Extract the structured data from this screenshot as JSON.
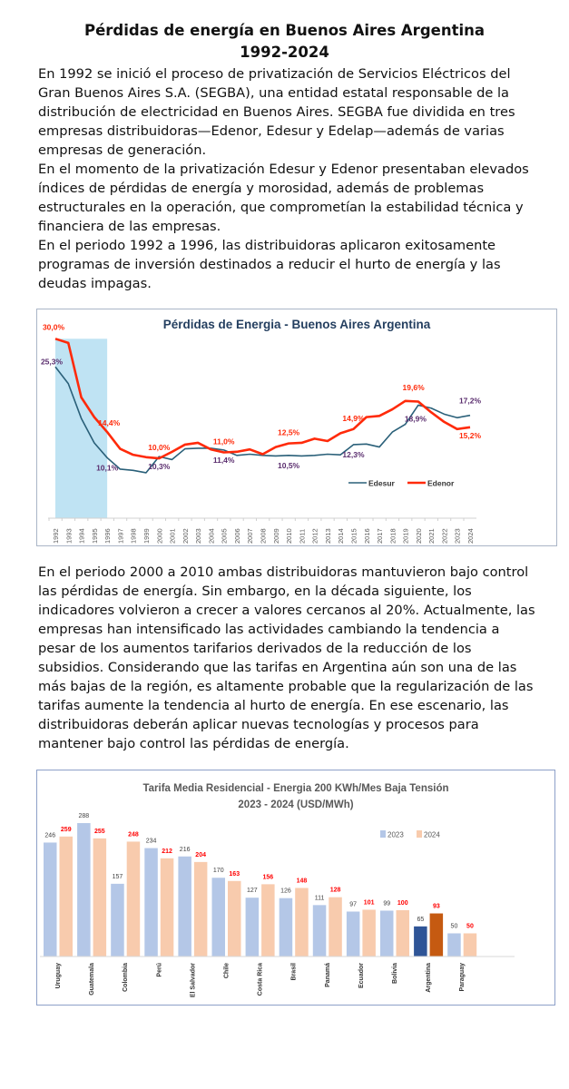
{
  "header": {
    "title_line1": "Pérdidas de energía en Buenos Aires Argentina",
    "title_line2": "1992-2024"
  },
  "intro_paragraphs": [
    "En 1992 se inició el proceso de privatización de Servicios Eléctricos del Gran Buenos Aires S.A. (SEGBA), una entidad estatal responsable de la distribución de electricidad en Buenos Aires. SEGBA fue dividida en tres empresas distribuidoras—Edenor, Edesur y Edelap—además de varias empresas de generación.",
    "En el momento de la privatización Edesur y Edenor presentaban elevados índices de pérdidas de energía y morosidad, además de problemas estructurales en la operación, que comprometían la estabilidad técnica y financiera de las empresas.",
    "En el periodo 1992 a 1996, las distribuidoras aplicaron exitosamente programas de inversión destinados a reducir el hurto de energía y las deudas impagas."
  ],
  "second_paragraph": "En el periodo 2000 a 2010 ambas distribuidoras mantuvieron bajo control las pérdidas de energía. Sin embargo, en la década siguiente, los indicadores volvieron a crecer a valores cercanos al 20%. Actualmente, las empresas han intensificado las actividades cambiando la tendencia a pesar de los aumentos tarifarios derivados de la reducción de los subsidios. Considerando que las tarifas en Argentina aún son una de las más bajas de la región, es altamente probable que la regularización de las tarifas aumente la tendencia al hurto de energía. En ese escenario, las distribuidoras deberán aplicar nuevas tecnologías y procesos para mantener bajo control las pérdidas de energía.",
  "chart_data": [
    {
      "type": "line",
      "title": "Pérdidas de Energia - Buenos Aires Argentina",
      "x": [
        1992,
        1993,
        1994,
        1995,
        1996,
        1997,
        1998,
        1999,
        2000,
        2001,
        2002,
        2003,
        2004,
        2005,
        2006,
        2007,
        2008,
        2009,
        2010,
        2011,
        2012,
        2013,
        2014,
        2015,
        2016,
        2017,
        2018,
        2019,
        2020,
        2021,
        2022,
        2023,
        2024
      ],
      "ylim": [
        0,
        30
      ],
      "grid": false,
      "legend_position": "bottom-right",
      "highlight_range": [
        1992,
        1996
      ],
      "highlight_color": "#bfe3f3",
      "series": [
        {
          "name": "Edesur",
          "color": "#2a6079",
          "values": [
            25.3,
            22.5,
            16.7,
            12.6,
            10.1,
            8.2,
            8.0,
            7.6,
            10.3,
            9.8,
            11.6,
            11.7,
            11.7,
            11.4,
            10.5,
            10.7,
            10.5,
            10.4,
            10.5,
            10.4,
            10.5,
            10.7,
            10.6,
            12.3,
            12.4,
            11.9,
            14.4,
            15.7,
            18.9,
            18.4,
            17.4,
            16.8,
            17.2
          ]
        },
        {
          "name": "Edenor",
          "color": "#ff2a0a",
          "values": [
            30.0,
            29.3,
            20.2,
            16.9,
            14.4,
            11.6,
            10.6,
            10.2,
            10.0,
            11.1,
            12.3,
            12.6,
            11.5,
            11.0,
            11.1,
            11.5,
            10.7,
            11.9,
            12.5,
            12.6,
            13.3,
            12.9,
            14.2,
            14.9,
            16.9,
            17.1,
            18.2,
            19.6,
            19.5,
            17.7,
            16.1,
            14.9,
            15.2
          ]
        }
      ],
      "annotations": [
        {
          "series": "Edenor",
          "year": 1992,
          "text": "30,0%"
        },
        {
          "series": "Edesur",
          "year": 1992,
          "text": "25,3%"
        },
        {
          "series": "Edenor",
          "year": 1996,
          "text": "14,4%"
        },
        {
          "series": "Edesur",
          "year": 1996,
          "text": "10,1%"
        },
        {
          "series": "Edenor",
          "year": 2000,
          "text": "10,0%"
        },
        {
          "series": "Edesur",
          "year": 2000,
          "text": "10,3%"
        },
        {
          "series": "Edenor",
          "year": 2005,
          "text": "11,0%"
        },
        {
          "series": "Edesur",
          "year": 2005,
          "text": "11,4%"
        },
        {
          "series": "Edenor",
          "year": 2010,
          "text": "12,5%"
        },
        {
          "series": "Edesur",
          "year": 2010,
          "text": "10,5%"
        },
        {
          "series": "Edenor",
          "year": 2015,
          "text": "14,9%"
        },
        {
          "series": "Edesur",
          "year": 2015,
          "text": "12,3%"
        },
        {
          "series": "Edenor",
          "year": 2019,
          "text": "19,6%"
        },
        {
          "series": "Edesur",
          "year": 2020,
          "text": "18,9%"
        },
        {
          "series": "Edesur",
          "year": 2024,
          "text": "17,2%"
        },
        {
          "series": "Edenor",
          "year": 2024,
          "text": "15,2%"
        }
      ]
    },
    {
      "type": "bar",
      "title_line1": "Tarifa Media Residencial - Energia 200 KWh/Mes Baja Tensión",
      "title_line2": "2023 - 2024 (USD/MWh)",
      "legend_position": "top-right",
      "categories": [
        "Uruguay",
        "Guatemala",
        "Colombia",
        "Perú",
        "El Salvador",
        "Chile",
        "Costa Rica",
        "Brasil",
        "Panamá",
        "Ecuador",
        "Bolivia",
        "Argentina",
        "Paraguay"
      ],
      "highlight_category": "Argentina",
      "series": [
        {
          "name": "2023",
          "color": "#b4c7e7",
          "highlight_color": "#2f5597",
          "label_color": "#404040",
          "values": [
            246,
            288,
            157,
            234,
            216,
            170,
            127,
            126,
            111,
            97,
            99,
            65,
            50
          ]
        },
        {
          "name": "2024",
          "color": "#f8cbad",
          "highlight_color": "#c55a11",
          "label_color": "#ff0000",
          "values": [
            259,
            255,
            248,
            212,
            204,
            163,
            156,
            148,
            128,
            101,
            100,
            93,
            50
          ]
        }
      ]
    }
  ]
}
